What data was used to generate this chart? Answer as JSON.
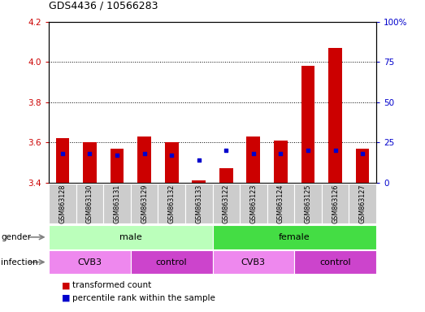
{
  "title": "GDS4436 / 10566283",
  "samples": [
    "GSM863128",
    "GSM863130",
    "GSM863131",
    "GSM863129",
    "GSM863132",
    "GSM863133",
    "GSM863122",
    "GSM863123",
    "GSM863124",
    "GSM863125",
    "GSM863126",
    "GSM863127"
  ],
  "transformed_counts": [
    3.62,
    3.6,
    3.57,
    3.63,
    3.6,
    3.41,
    3.47,
    3.63,
    3.61,
    3.98,
    4.07,
    3.57
  ],
  "percentile_ranks": [
    18,
    18,
    17,
    18,
    17,
    14,
    20,
    18,
    18,
    20,
    20,
    18
  ],
  "ylim_left": [
    3.4,
    4.2
  ],
  "ylim_right": [
    0,
    100
  ],
  "yticks_left": [
    3.4,
    3.6,
    3.8,
    4.0,
    4.2
  ],
  "yticks_right": [
    0,
    25,
    50,
    75,
    100
  ],
  "ytick_labels_right": [
    "0",
    "25",
    "50",
    "75",
    "100%"
  ],
  "bar_color": "#cc0000",
  "dot_color": "#0000cc",
  "bar_width": 0.5,
  "gender_groups": [
    {
      "label": "male",
      "start": 0,
      "end": 5,
      "color": "#bbffbb"
    },
    {
      "label": "female",
      "start": 6,
      "end": 11,
      "color": "#44dd44"
    }
  ],
  "infection_groups": [
    {
      "label": "CVB3",
      "start": 0,
      "end": 2,
      "color": "#ee88ee"
    },
    {
      "label": "control",
      "start": 3,
      "end": 5,
      "color": "#cc44cc"
    },
    {
      "label": "CVB3",
      "start": 6,
      "end": 8,
      "color": "#ee88ee"
    },
    {
      "label": "control",
      "start": 9,
      "end": 11,
      "color": "#cc44cc"
    }
  ],
  "tick_color_left": "#cc0000",
  "tick_color_right": "#0000cc",
  "grid_color": "#000000",
  "background_color": "#ffffff",
  "plot_bg_color": "#ffffff",
  "label_bg_color": "#cccccc"
}
